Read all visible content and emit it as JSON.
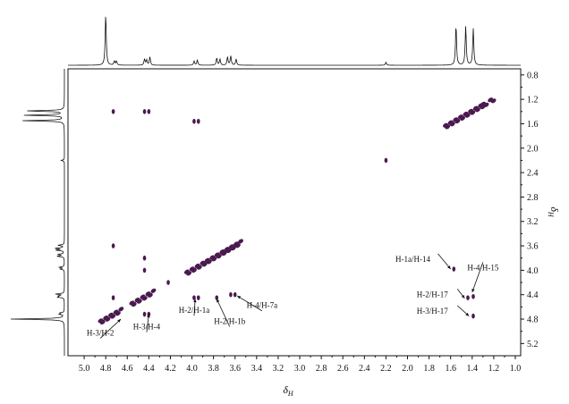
{
  "chart_data": {
    "type": "scatter",
    "title": "",
    "xlabel": "δ",
    "xlabel_sub": "H",
    "ylabel": "δ",
    "ylabel_sub": "H",
    "xlim": [
      5.15,
      0.95
    ],
    "ylim": [
      0.7,
      5.4
    ],
    "x_ticks": [
      "5.0",
      "4.8",
      "4.6",
      "4.4",
      "4.2",
      "4.0",
      "3.8",
      "3.6",
      "3.4",
      "3.2",
      "3.0",
      "2.8",
      "2.6",
      "2.4",
      "2.2",
      "2.0",
      "1.8",
      "1.6",
      "1.4",
      "1.2",
      "1.0"
    ],
    "y_ticks": [
      "0.8",
      "1.2",
      "1.6",
      "2.0",
      "2.4",
      "2.8",
      "3.2",
      "3.6",
      "4.0",
      "4.4",
      "4.8",
      "5.2"
    ],
    "grid": false,
    "peak_color": "#4a1a4f",
    "spectrum_peaks": [
      {
        "shift": 4.8,
        "height": 1.0
      },
      {
        "shift": 4.72,
        "height": 0.08
      },
      {
        "shift": 4.7,
        "height": 0.08
      },
      {
        "shift": 4.44,
        "height": 0.12
      },
      {
        "shift": 4.42,
        "height": 0.1
      },
      {
        "shift": 4.39,
        "height": 0.16
      },
      {
        "shift": 3.98,
        "height": 0.08
      },
      {
        "shift": 3.95,
        "height": 0.1
      },
      {
        "shift": 3.77,
        "height": 0.14
      },
      {
        "shift": 3.74,
        "height": 0.12
      },
      {
        "shift": 3.67,
        "height": 0.16
      },
      {
        "shift": 3.64,
        "height": 0.18
      },
      {
        "shift": 3.59,
        "height": 0.12
      },
      {
        "shift": 2.2,
        "height": 0.06
      },
      {
        "shift": 1.55,
        "height": 0.78
      },
      {
        "shift": 1.46,
        "height": 0.76
      },
      {
        "shift": 1.39,
        "height": 0.72
      }
    ],
    "cross_peaks": [
      {
        "x": 4.73,
        "y": 1.4
      },
      {
        "x": 4.44,
        "y": 1.4
      },
      {
        "x": 4.4,
        "y": 1.4
      },
      {
        "x": 3.98,
        "y": 1.56
      },
      {
        "x": 3.94,
        "y": 1.56
      },
      {
        "x": 2.2,
        "y": 2.2
      },
      {
        "x": 4.73,
        "y": 3.6
      },
      {
        "x": 4.44,
        "y": 3.8
      },
      {
        "x": 4.44,
        "y": 4.0
      },
      {
        "x": 4.73,
        "y": 4.45
      },
      {
        "x": 4.44,
        "y": 4.72
      },
      {
        "x": 4.4,
        "y": 4.72
      },
      {
        "x": 4.22,
        "y": 4.2
      },
      {
        "x": 3.98,
        "y": 4.45
      },
      {
        "x": 3.94,
        "y": 4.45
      },
      {
        "x": 3.77,
        "y": 4.45
      },
      {
        "x": 3.64,
        "y": 4.4
      },
      {
        "x": 3.6,
        "y": 4.4
      },
      {
        "x": 1.57,
        "y": 3.98
      },
      {
        "x": 1.39,
        "y": 4.43
      },
      {
        "x": 1.44,
        "y": 4.45
      },
      {
        "x": 1.39,
        "y": 4.75
      }
    ],
    "diagonal_clusters": [
      {
        "x1": 4.85,
        "x2": 4.66,
        "dots": 9
      },
      {
        "x1": 4.56,
        "x2": 4.36,
        "dots": 9
      },
      {
        "x1": 4.05,
        "x2": 3.88,
        "dots": 8
      },
      {
        "x1": 3.86,
        "x2": 3.7,
        "dots": 8
      },
      {
        "x1": 3.72,
        "x2": 3.55,
        "dots": 9
      },
      {
        "x1": 1.65,
        "x2": 1.3,
        "dots": 16
      },
      {
        "x1": 1.3,
        "x2": 1.2,
        "dots": 4
      }
    ],
    "annotations": [
      {
        "label": "H-3/H-2",
        "text_x": 4.85,
        "text_y": 5.07,
        "target_x": 4.66,
        "target_y": 4.8
      },
      {
        "label": "H-3/H-4",
        "text_x": 4.42,
        "text_y": 4.97,
        "target_x": 4.4,
        "target_y": 4.72
      },
      {
        "label": "H-2/H-1a",
        "text_x": 3.98,
        "text_y": 4.7,
        "target_x": 3.97,
        "target_y": 4.47
      },
      {
        "label": "H-2/H-1b",
        "text_x": 3.65,
        "text_y": 4.88,
        "target_x": 3.77,
        "target_y": 4.47
      },
      {
        "label": "H-4/H-7a",
        "text_x": 3.35,
        "text_y": 4.62,
        "target_x": 3.58,
        "target_y": 4.42
      },
      {
        "label": "H-1a/H-14",
        "text_x": 1.95,
        "text_y": 3.86,
        "target_x": 1.6,
        "target_y": 3.98
      },
      {
        "label": "H-4/H-15",
        "text_x": 1.3,
        "text_y": 4.0,
        "target_x": 1.4,
        "target_y": 4.36
      },
      {
        "label": "H-2/H-17",
        "text_x": 1.77,
        "text_y": 4.44,
        "target_x": 1.47,
        "target_y": 4.46
      },
      {
        "label": "H-3/H-17",
        "text_x": 1.77,
        "text_y": 4.71,
        "target_x": 1.43,
        "target_y": 4.75
      }
    ]
  }
}
